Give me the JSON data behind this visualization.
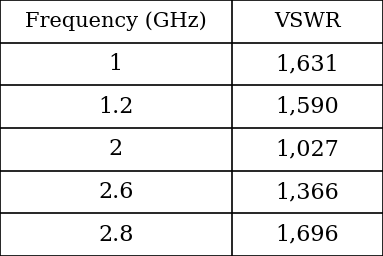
{
  "headers": [
    "Frequency (GHz)",
    "VSWR"
  ],
  "rows": [
    [
      "1",
      "1,631"
    ],
    [
      "1.2",
      "1,590"
    ],
    [
      "2",
      "1,027"
    ],
    [
      "2.6",
      "1,366"
    ],
    [
      "2.8",
      "1,696"
    ]
  ],
  "background_color": "#ffffff",
  "line_color": "#000000",
  "text_color": "#000000",
  "font_size": 16,
  "header_font_size": 15,
  "col_split": 0.605,
  "fig_width": 3.83,
  "fig_height": 2.56,
  "dpi": 100
}
